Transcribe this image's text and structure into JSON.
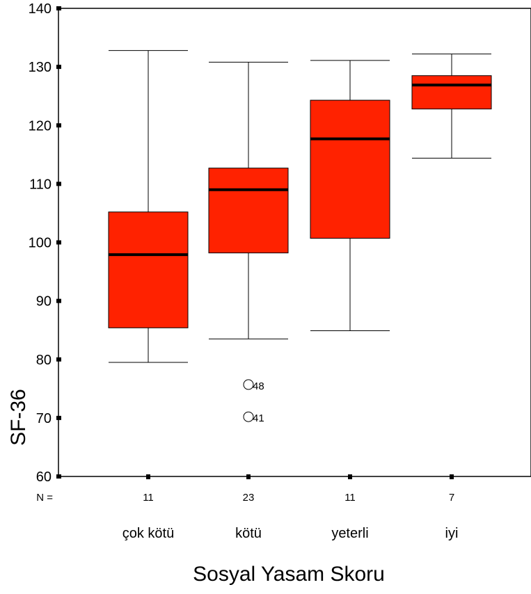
{
  "chart_data": {
    "type": "boxplot",
    "title": "",
    "xlabel": "Sosyal Yasam Skoru",
    "ylabel": "SF-36",
    "ylim": [
      60,
      140
    ],
    "yticks": [
      60,
      70,
      80,
      90,
      100,
      110,
      120,
      130,
      140
    ],
    "grid": false,
    "n_prefix": "N =",
    "categories": [
      "çok kötü",
      "kötü",
      "yeterli",
      "iyi"
    ],
    "n": [
      "11",
      "23",
      "11",
      "7"
    ],
    "box_color": "#ff2200",
    "boxes": [
      {
        "category": "çok kötü",
        "min": 79.5,
        "q1": 85.4,
        "median": 97.9,
        "q3": 105.2,
        "max": 132.8,
        "outliers": []
      },
      {
        "category": "kötü",
        "min": 83.5,
        "q1": 98.2,
        "median": 109.0,
        "q3": 112.7,
        "max": 130.8,
        "outliers": [
          {
            "value": 75.7,
            "label": "48"
          },
          {
            "value": 70.2,
            "label": "41"
          }
        ]
      },
      {
        "category": "yeterli",
        "min": 84.9,
        "q1": 100.7,
        "median": 117.7,
        "q3": 124.3,
        "max": 131.1,
        "outliers": []
      },
      {
        "category": "iyi",
        "min": 114.4,
        "q1": 122.8,
        "median": 126.9,
        "q3": 128.5,
        "max": 132.2,
        "outliers": []
      }
    ]
  }
}
